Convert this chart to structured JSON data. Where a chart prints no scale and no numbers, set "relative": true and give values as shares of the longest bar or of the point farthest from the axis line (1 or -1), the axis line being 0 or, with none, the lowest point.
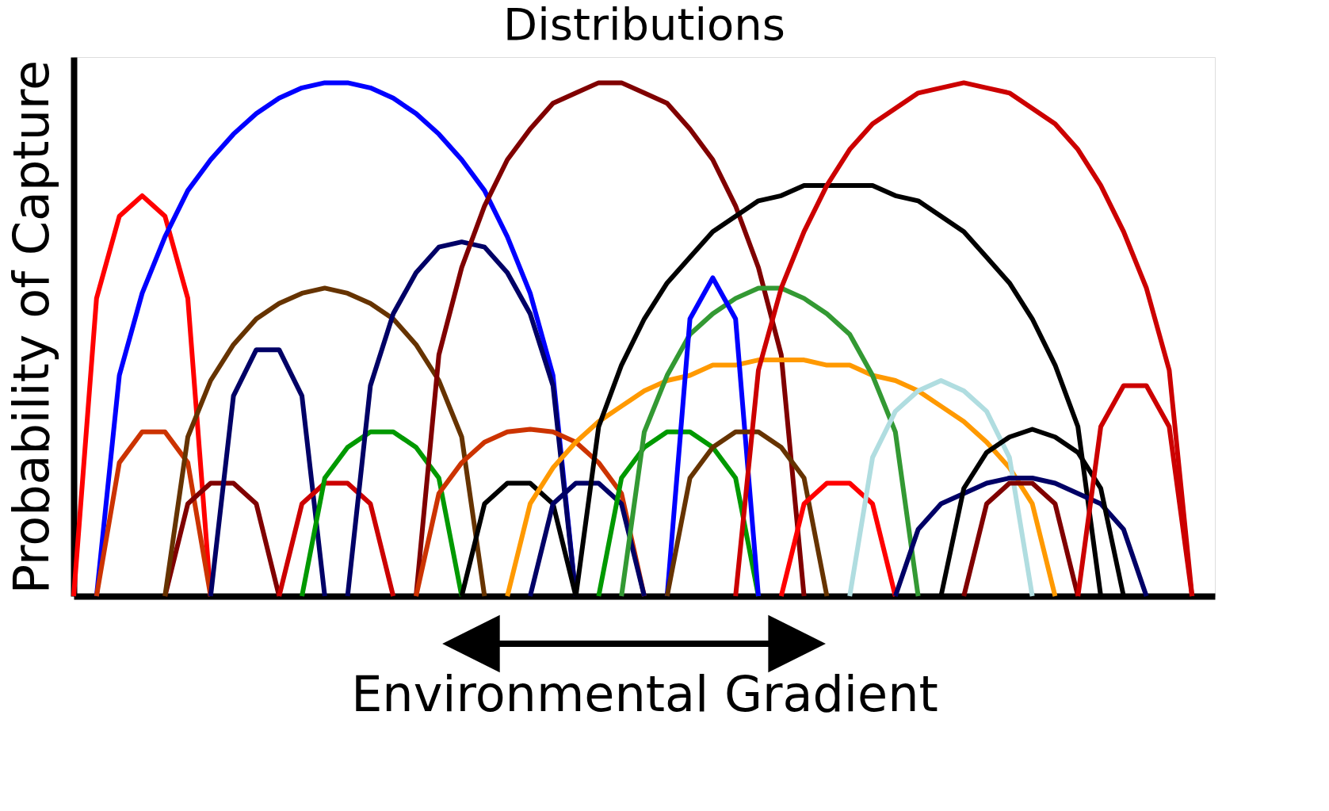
{
  "chart_data": {
    "type": "line",
    "title": "Distributions",
    "xlabel": "Environmental Gradient",
    "ylabel": "Probability of Capture",
    "relative": true,
    "tick_labels": false,
    "line_style": "solid",
    "categories": [
      null,
      null,
      null,
      null,
      null,
      null,
      null,
      null,
      null,
      null,
      null,
      null,
      null,
      null,
      null,
      null,
      null,
      null,
      null,
      null,
      null,
      null,
      null,
      null,
      null,
      null,
      null,
      null,
      null,
      null,
      null,
      null,
      null,
      null,
      null,
      null,
      null,
      null,
      null,
      null,
      null,
      null,
      null,
      null,
      null,
      null,
      null,
      null,
      null,
      null,
      null
    ],
    "series": [
      {
        "color": "#ff0000",
        "values": [
          0,
          0.58,
          0.74,
          0.78,
          0.74,
          0.58,
          0,
          null,
          null,
          null,
          null,
          null,
          null,
          null,
          null,
          null,
          null,
          null,
          null,
          null,
          null,
          null,
          null,
          null,
          null,
          null,
          null,
          null,
          null,
          null,
          null,
          null,
          null,
          null,
          null,
          null,
          null,
          null,
          null,
          null,
          null,
          null,
          null,
          null,
          null,
          null,
          null,
          null,
          null,
          null,
          null
        ]
      },
      {
        "color": "#0000ff",
        "values": [
          null,
          0,
          0.43,
          0.59,
          0.7,
          0.79,
          0.85,
          0.9,
          0.94,
          0.97,
          0.99,
          1,
          1,
          0.99,
          0.97,
          0.94,
          0.9,
          0.85,
          0.79,
          0.7,
          0.59,
          0.43,
          0,
          null,
          null,
          null,
          null,
          null,
          null,
          null,
          null,
          null,
          null,
          null,
          null,
          null,
          null,
          null,
          null,
          null,
          null,
          null,
          null,
          null,
          null,
          null,
          null,
          null,
          null,
          null,
          null
        ]
      },
      {
        "color": "#cc3300",
        "values": [
          null,
          0,
          0.26,
          0.32,
          0.32,
          0.26,
          0,
          null,
          null,
          null,
          null,
          null,
          null,
          null,
          null,
          null,
          null,
          null,
          null,
          null,
          null,
          null,
          null,
          null,
          null,
          null,
          null,
          null,
          null,
          null,
          null,
          null,
          null,
          null,
          null,
          null,
          null,
          null,
          null,
          null,
          null,
          null,
          null,
          null,
          null,
          null,
          null,
          null,
          null,
          null,
          null
        ]
      },
      {
        "color": "#800000",
        "values": [
          null,
          null,
          null,
          null,
          0,
          0.18,
          0.22,
          0.22,
          0.18,
          0,
          null,
          null,
          null,
          null,
          null,
          null,
          null,
          null,
          null,
          null,
          null,
          null,
          null,
          null,
          null,
          null,
          null,
          null,
          null,
          null,
          null,
          null,
          null,
          null,
          null,
          null,
          null,
          null,
          null,
          null,
          null,
          null,
          null,
          null,
          null,
          null,
          null,
          null,
          null,
          null,
          null
        ]
      },
      {
        "color": "#663300",
        "values": [
          null,
          null,
          null,
          null,
          0,
          0.31,
          0.42,
          0.49,
          0.54,
          0.57,
          0.59,
          0.6,
          0.59,
          0.57,
          0.54,
          0.49,
          0.42,
          0.31,
          0,
          null,
          null,
          null,
          null,
          null,
          null,
          null,
          null,
          null,
          null,
          null,
          null,
          null,
          null,
          null,
          null,
          null,
          null,
          null,
          null,
          null,
          null,
          null,
          null,
          null,
          null,
          null,
          null,
          null,
          null,
          null,
          null
        ]
      },
      {
        "color": "#000066",
        "values": [
          null,
          null,
          null,
          null,
          null,
          null,
          0,
          0.39,
          0.48,
          0.48,
          0.39,
          0,
          null,
          null,
          null,
          null,
          null,
          null,
          null,
          null,
          null,
          null,
          null,
          null,
          null,
          null,
          null,
          null,
          null,
          null,
          null,
          null,
          null,
          null,
          null,
          null,
          null,
          null,
          null,
          null,
          null,
          null,
          null,
          null,
          null,
          null,
          null,
          null,
          null,
          null,
          null
        ]
      },
      {
        "color": "#cc0000",
        "values": [
          null,
          null,
          null,
          null,
          null,
          null,
          null,
          null,
          null,
          0,
          0.18,
          0.22,
          0.22,
          0.18,
          0,
          null,
          null,
          null,
          null,
          null,
          null,
          null,
          null,
          null,
          null,
          null,
          null,
          null,
          null,
          null,
          null,
          null,
          null,
          null,
          null,
          null,
          null,
          null,
          null,
          null,
          null,
          null,
          null,
          null,
          null,
          null,
          null,
          null,
          null,
          null,
          null
        ]
      },
      {
        "color": "#009900",
        "values": [
          null,
          null,
          null,
          null,
          null,
          null,
          null,
          null,
          null,
          null,
          0,
          0.23,
          0.29,
          0.32,
          0.32,
          0.29,
          0.23,
          0,
          null,
          null,
          null,
          null,
          null,
          null,
          null,
          null,
          null,
          null,
          null,
          null,
          null,
          null,
          null,
          null,
          null,
          null,
          null,
          null,
          null,
          null,
          null,
          null,
          null,
          null,
          null,
          null,
          null,
          null,
          null,
          null,
          null
        ]
      },
      {
        "color": "#000066",
        "values": [
          null,
          null,
          null,
          null,
          null,
          null,
          null,
          null,
          null,
          null,
          null,
          null,
          0,
          0.41,
          0.55,
          0.63,
          0.68,
          0.69,
          0.68,
          0.63,
          0.55,
          0.41,
          0,
          null,
          null,
          null,
          null,
          null,
          null,
          null,
          null,
          null,
          null,
          null,
          null,
          null,
          null,
          null,
          null,
          null,
          null,
          null,
          null,
          null,
          null,
          null,
          null,
          null,
          null,
          null,
          null
        ]
      },
      {
        "color": "#800000",
        "values": [
          null,
          null,
          null,
          null,
          null,
          null,
          null,
          null,
          null,
          null,
          null,
          null,
          null,
          null,
          null,
          0,
          0.47,
          0.64,
          0.76,
          0.85,
          0.91,
          0.96,
          0.98,
          1,
          1,
          0.98,
          0.96,
          0.91,
          0.85,
          0.76,
          0.64,
          0.47,
          0,
          null,
          null,
          null,
          null,
          null,
          null,
          null,
          null,
          null,
          null,
          null,
          null,
          null,
          null,
          null,
          null,
          null,
          null
        ]
      },
      {
        "color": "#cc3300",
        "values": [
          null,
          null,
          null,
          null,
          null,
          null,
          null,
          null,
          null,
          null,
          null,
          null,
          null,
          null,
          null,
          0,
          0.2,
          0.26,
          0.3,
          0.32,
          0.325,
          0.32,
          0.3,
          0.26,
          0.2,
          0,
          null,
          null,
          null,
          null,
          null,
          null,
          null,
          null,
          null,
          null,
          null,
          null,
          null,
          null,
          null,
          null,
          null,
          null,
          null,
          null,
          null,
          null,
          null,
          null,
          null
        ]
      },
      {
        "color": "#000000",
        "values": [
          null,
          null,
          null,
          null,
          null,
          null,
          null,
          null,
          null,
          null,
          null,
          null,
          null,
          null,
          null,
          null,
          null,
          0,
          0.18,
          0.22,
          0.22,
          0.18,
          0,
          null,
          null,
          null,
          null,
          null,
          null,
          null,
          null,
          null,
          null,
          null,
          null,
          null,
          null,
          null,
          null,
          null,
          null,
          null,
          null,
          null,
          null,
          null,
          null,
          null,
          null,
          null,
          null
        ]
      },
      {
        "color": "#ff9900",
        "values": [
          null,
          null,
          null,
          null,
          null,
          null,
          null,
          null,
          null,
          null,
          null,
          null,
          null,
          null,
          null,
          null,
          null,
          null,
          null,
          0,
          0.18,
          0.25,
          0.3,
          0.34,
          0.37,
          0.4,
          0.42,
          0.43,
          0.45,
          0.45,
          0.46,
          0.46,
          0.46,
          0.45,
          0.45,
          0.43,
          0.42,
          0.4,
          0.37,
          0.34,
          0.3,
          0.25,
          0.18,
          0,
          null,
          null,
          null,
          null,
          null,
          null,
          null
        ]
      },
      {
        "color": "#000066",
        "values": [
          null,
          null,
          null,
          null,
          null,
          null,
          null,
          null,
          null,
          null,
          null,
          null,
          null,
          null,
          null,
          null,
          null,
          null,
          null,
          null,
          0,
          0.18,
          0.22,
          0.22,
          0.18,
          0,
          null,
          null,
          null,
          null,
          null,
          null,
          null,
          null,
          null,
          null,
          null,
          null,
          null,
          null,
          null,
          null,
          null,
          null,
          null,
          null,
          null,
          null,
          null,
          null,
          null
        ]
      },
      {
        "color": "#000000",
        "values": [
          null,
          null,
          null,
          null,
          null,
          null,
          null,
          null,
          null,
          null,
          null,
          null,
          null,
          null,
          null,
          null,
          null,
          null,
          null,
          null,
          null,
          null,
          0,
          0.33,
          0.45,
          0.54,
          0.61,
          0.66,
          0.71,
          0.74,
          0.77,
          0.78,
          0.8,
          0.8,
          0.8,
          0.8,
          0.78,
          0.77,
          0.74,
          0.71,
          0.66,
          0.61,
          0.54,
          0.45,
          0.33,
          0,
          null,
          null,
          null,
          null,
          null
        ]
      },
      {
        "color": "#009900",
        "values": [
          null,
          null,
          null,
          null,
          null,
          null,
          null,
          null,
          null,
          null,
          null,
          null,
          null,
          null,
          null,
          null,
          null,
          null,
          null,
          null,
          null,
          null,
          null,
          0,
          0.23,
          0.29,
          0.32,
          0.32,
          0.29,
          0.23,
          0,
          null,
          null,
          null,
          null,
          null,
          null,
          null,
          null,
          null,
          null,
          null,
          null,
          null,
          null,
          null,
          null,
          null,
          null,
          null,
          null
        ]
      },
      {
        "color": "#339933",
        "values": [
          null,
          null,
          null,
          null,
          null,
          null,
          null,
          null,
          null,
          null,
          null,
          null,
          null,
          null,
          null,
          null,
          null,
          null,
          null,
          null,
          null,
          null,
          null,
          null,
          0,
          0.32,
          0.43,
          0.51,
          0.55,
          0.58,
          0.6,
          0.6,
          0.58,
          0.55,
          0.51,
          0.43,
          0.32,
          0,
          null,
          null,
          null,
          null,
          null,
          null,
          null,
          null,
          null,
          null,
          null,
          null,
          null
        ]
      },
      {
        "color": "#0000ff",
        "values": [
          null,
          null,
          null,
          null,
          null,
          null,
          null,
          null,
          null,
          null,
          null,
          null,
          null,
          null,
          null,
          null,
          null,
          null,
          null,
          null,
          null,
          null,
          null,
          null,
          null,
          null,
          0,
          0.54,
          0.62,
          0.54,
          0,
          null,
          null,
          null,
          null,
          null,
          null,
          null,
          null,
          null,
          null,
          null,
          null,
          null,
          null,
          null,
          null,
          null,
          null,
          null,
          null
        ]
      },
      {
        "color": "#663300",
        "values": [
          null,
          null,
          null,
          null,
          null,
          null,
          null,
          null,
          null,
          null,
          null,
          null,
          null,
          null,
          null,
          null,
          null,
          null,
          null,
          null,
          null,
          null,
          null,
          null,
          null,
          null,
          0,
          0.23,
          0.29,
          0.32,
          0.32,
          0.29,
          0.23,
          0,
          null,
          null,
          null,
          null,
          null,
          null,
          null,
          null,
          null,
          null,
          null,
          null,
          null,
          null,
          null,
          null,
          null
        ]
      },
      {
        "color": "#cc0000",
        "values": [
          null,
          null,
          null,
          null,
          null,
          null,
          null,
          null,
          null,
          null,
          null,
          null,
          null,
          null,
          null,
          null,
          null,
          null,
          null,
          null,
          null,
          null,
          null,
          null,
          null,
          null,
          null,
          null,
          null,
          0,
          0.44,
          0.6,
          0.71,
          0.8,
          0.87,
          0.92,
          0.95,
          0.98,
          0.99,
          1,
          0.99,
          0.98,
          0.95,
          0.92,
          0.87,
          0.8,
          0.71,
          0.6,
          0.44,
          0,
          null
        ]
      },
      {
        "color": "#ff0000",
        "values": [
          null,
          null,
          null,
          null,
          null,
          null,
          null,
          null,
          null,
          null,
          null,
          null,
          null,
          null,
          null,
          null,
          null,
          null,
          null,
          null,
          null,
          null,
          null,
          null,
          null,
          null,
          null,
          null,
          null,
          null,
          null,
          0,
          0.18,
          0.22,
          0.22,
          0.18,
          0,
          null,
          null,
          null,
          null,
          null,
          null,
          null,
          null,
          null,
          null,
          null,
          null,
          null,
          null
        ]
      },
      {
        "color": "#b0dde0",
        "values": [
          null,
          null,
          null,
          null,
          null,
          null,
          null,
          null,
          null,
          null,
          null,
          null,
          null,
          null,
          null,
          null,
          null,
          null,
          null,
          null,
          null,
          null,
          null,
          null,
          null,
          null,
          null,
          null,
          null,
          null,
          null,
          null,
          null,
          null,
          0,
          0.27,
          0.36,
          0.4,
          0.42,
          0.4,
          0.36,
          0.27,
          0,
          null,
          null,
          null,
          null,
          null,
          null,
          null,
          null
        ]
      },
      {
        "color": "#000066",
        "values": [
          null,
          null,
          null,
          null,
          null,
          null,
          null,
          null,
          null,
          null,
          null,
          null,
          null,
          null,
          null,
          null,
          null,
          null,
          null,
          null,
          null,
          null,
          null,
          null,
          null,
          null,
          null,
          null,
          null,
          null,
          null,
          null,
          null,
          null,
          null,
          null,
          0,
          0.13,
          0.18,
          0.2,
          0.22,
          0.23,
          0.23,
          0.22,
          0.2,
          0.18,
          0.13,
          0,
          null,
          null,
          null
        ]
      },
      {
        "color": "#000000",
        "values": [
          null,
          null,
          null,
          null,
          null,
          null,
          null,
          null,
          null,
          null,
          null,
          null,
          null,
          null,
          null,
          null,
          null,
          null,
          null,
          null,
          null,
          null,
          null,
          null,
          null,
          null,
          null,
          null,
          null,
          null,
          null,
          null,
          null,
          null,
          null,
          null,
          null,
          null,
          0,
          0.21,
          0.28,
          0.31,
          0.325,
          0.31,
          0.28,
          0.21,
          0,
          null,
          null,
          null,
          null
        ]
      },
      {
        "color": "#800000",
        "values": [
          null,
          null,
          null,
          null,
          null,
          null,
          null,
          null,
          null,
          null,
          null,
          null,
          null,
          null,
          null,
          null,
          null,
          null,
          null,
          null,
          null,
          null,
          null,
          null,
          null,
          null,
          null,
          null,
          null,
          null,
          null,
          null,
          null,
          null,
          null,
          null,
          null,
          null,
          null,
          0,
          0.18,
          0.22,
          0.22,
          0.18,
          0,
          null,
          null,
          null,
          null,
          null,
          null
        ]
      },
      {
        "color": "#cc0000",
        "values": [
          null,
          null,
          null,
          null,
          null,
          null,
          null,
          null,
          null,
          null,
          null,
          null,
          null,
          null,
          null,
          null,
          null,
          null,
          null,
          null,
          null,
          null,
          null,
          null,
          null,
          null,
          null,
          null,
          null,
          null,
          null,
          null,
          null,
          null,
          null,
          null,
          null,
          null,
          null,
          null,
          null,
          null,
          null,
          null,
          0,
          0.33,
          0.41,
          0.41,
          0.33,
          0,
          null
        ]
      }
    ]
  }
}
